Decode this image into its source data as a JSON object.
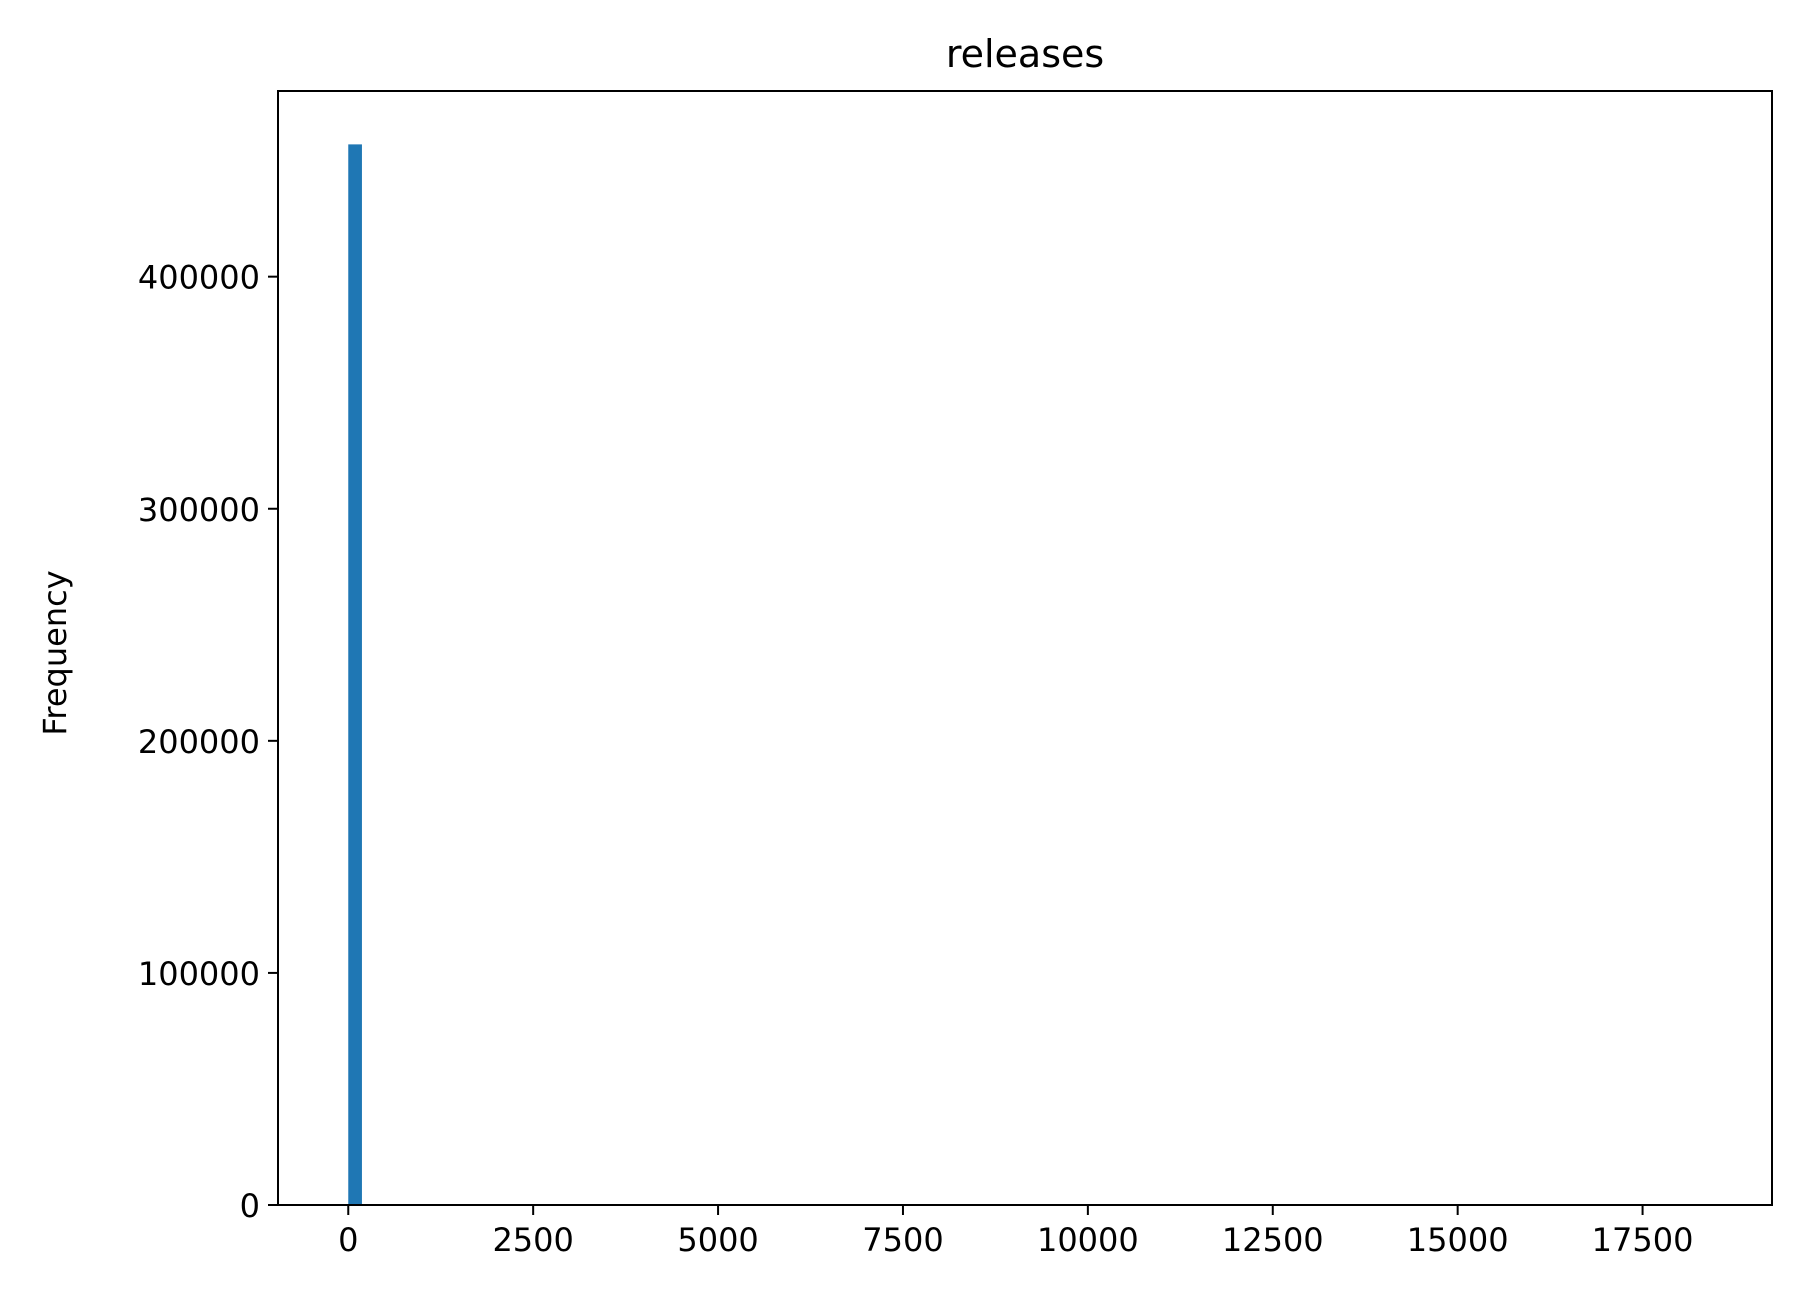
{
  "chart_data": {
    "type": "bar",
    "title": "releases",
    "xlabel": "",
    "ylabel": "Frequency",
    "bins": [
      {
        "x0": 0,
        "x1": 185,
        "count": 457000
      }
    ],
    "xlim": [
      -950,
      19250
    ],
    "ylim": [
      0,
      480000
    ],
    "xticks": [
      0,
      2500,
      5000,
      7500,
      10000,
      12500,
      15000,
      17500
    ],
    "xtick_labels": [
      "0",
      "2500",
      "5000",
      "7500",
      "10000",
      "12500",
      "15000",
      "17500"
    ],
    "yticks": [
      0,
      100000,
      200000,
      300000,
      400000
    ],
    "ytick_labels": [
      "0",
      "100000",
      "200000",
      "300000",
      "400000"
    ],
    "bar_color": "#1f77b4",
    "grid": false,
    "legend": "none"
  }
}
